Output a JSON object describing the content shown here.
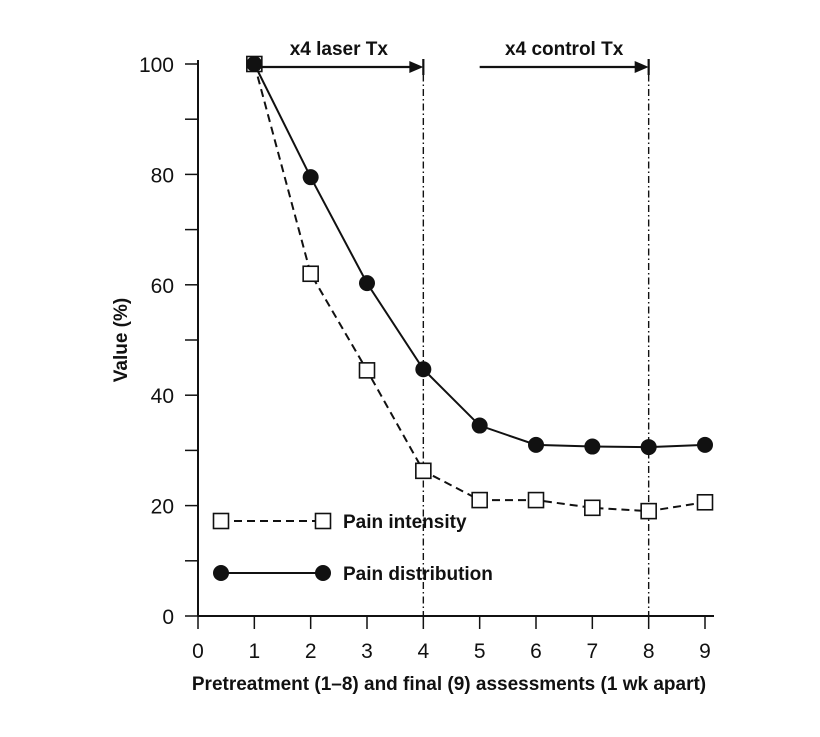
{
  "chart_data": {
    "type": "line",
    "xlabel": "Pretreatment (1–8) and final (9) assessments (1 wk apart)",
    "ylabel": "Value (%)",
    "xlim": [
      0,
      9
    ],
    "ylim": [
      0,
      100
    ],
    "x_ticks": [
      "0",
      "1",
      "2",
      "3",
      "4",
      "5",
      "6",
      "7",
      "8",
      "9"
    ],
    "y_ticks": [
      "0",
      "20",
      "40",
      "60",
      "80",
      "100"
    ],
    "series": [
      {
        "name": "Pain intensity",
        "marker": "open-square",
        "line": "dashed",
        "x": [
          1,
          2,
          3,
          4,
          5,
          6,
          7,
          8,
          9
        ],
        "values": [
          100,
          62,
          44.5,
          26.3,
          21,
          21,
          19.6,
          19,
          20.6
        ]
      },
      {
        "name": "Pain distribution",
        "marker": "filled-circle",
        "line": "solid",
        "x": [
          1,
          2,
          3,
          4,
          5,
          6,
          7,
          8,
          9
        ],
        "values": [
          100,
          79.5,
          60.3,
          44.7,
          34.5,
          31,
          30.7,
          30.6,
          31
        ]
      }
    ],
    "annotations": [
      {
        "text": "x4 laser Tx",
        "from_x": 1,
        "to_x": 4,
        "line_at_x": 4
      },
      {
        "text": "x4 control Tx",
        "from_x": 5,
        "to_x": 8,
        "line_at_x": 8
      }
    ],
    "legend": {
      "position": "bottom-left",
      "entries": [
        "Pain intensity",
        "Pain distribution"
      ]
    }
  }
}
